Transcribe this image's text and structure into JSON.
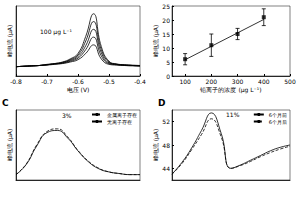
{
  "chart_data": [
    {
      "type": "line",
      "xlabel": "电压 (V)",
      "ylabel": "峰电流 (μA)",
      "annotation": "100 μg L⁻¹",
      "x": [
        -0.8,
        -0.775,
        -0.75,
        -0.725,
        -0.7,
        -0.675,
        -0.65,
        -0.625,
        -0.6,
        -0.575,
        -0.55,
        -0.525,
        -0.5,
        -0.475,
        -0.45,
        -0.425,
        -0.4
      ],
      "series": [
        {
          "color": "#000000",
          "values": [
            1.2,
            1.25,
            1.3,
            1.35,
            1.4,
            1.5,
            1.6,
            1.8,
            2.1,
            2.9,
            4.0,
            2.2,
            1.5,
            1.4,
            1.35,
            1.3,
            1.3
          ]
        },
        {
          "color": "#000000",
          "values": [
            1.2,
            1.25,
            1.3,
            1.35,
            1.45,
            1.55,
            1.65,
            1.9,
            2.3,
            3.4,
            5.0,
            2.6,
            1.6,
            1.45,
            1.4,
            1.35,
            1.3
          ]
        },
        {
          "color": "#000000",
          "values": [
            1.2,
            1.25,
            1.3,
            1.35,
            1.45,
            1.55,
            1.7,
            2.0,
            2.5,
            3.9,
            6.0,
            3.0,
            1.7,
            1.5,
            1.4,
            1.35,
            1.3
          ]
        },
        {
          "color": "#000000",
          "values": [
            1.2,
            1.25,
            1.3,
            1.35,
            1.45,
            1.6,
            1.75,
            2.1,
            2.7,
            4.5,
            7.0,
            3.4,
            1.8,
            1.5,
            1.4,
            1.35,
            1.3
          ]
        },
        {
          "color": "#000000",
          "values": [
            1.2,
            1.25,
            1.3,
            1.35,
            1.5,
            1.6,
            1.8,
            2.2,
            2.9,
            5.1,
            8.0,
            3.8,
            1.9,
            1.55,
            1.45,
            1.4,
            1.35
          ]
        }
      ],
      "xlim": [
        -0.8,
        -0.4
      ],
      "xticks": [
        -0.8,
        -0.7,
        -0.6,
        -0.5,
        -0.4
      ],
      "ylim": [
        0,
        9
      ],
      "tick_labels": "x"
    },
    {
      "type": "scatter",
      "xlabel": "铅离子的浓度 (μg L⁻¹)",
      "ylabel": "峰电流 (μA)",
      "x": [
        100,
        200,
        300,
        400
      ],
      "values": [
        6,
        11,
        15,
        21
      ],
      "errors": [
        2,
        4,
        2,
        3
      ],
      "fit": [
        5.8,
        10.6,
        15.4,
        20.2
      ],
      "color": "#000000",
      "marker": "square",
      "xlim": [
        50,
        500
      ],
      "xticks": [
        100,
        200,
        300,
        400,
        500
      ],
      "ylim": [
        0,
        25
      ],
      "yticks": [
        0,
        5,
        10,
        15,
        20,
        25
      ]
    },
    {
      "type": "line",
      "title": "C",
      "ylabel": "峰电流 (μA)",
      "annotation": "3%",
      "x": [
        0,
        1,
        2,
        3,
        4,
        5,
        6,
        7,
        8,
        9,
        10,
        11,
        12
      ],
      "series": [
        {
          "name": "金属离子存在",
          "color": "#000000",
          "line_style": "dashed",
          "values": [
            1,
            3,
            6.5,
            9,
            9.5,
            8,
            5.5,
            3.5,
            2.2,
            1.5,
            1.2,
            1,
            1
          ]
        },
        {
          "name": "无离子存在",
          "color": "#000000",
          "line_style": "solid",
          "values": [
            1,
            2.9,
            6.3,
            8.8,
            9.2,
            7.8,
            5.4,
            3.4,
            2.1,
            1.5,
            1.2,
            1,
            1
          ]
        }
      ],
      "xlim": [
        0,
        12
      ],
      "ylim": [
        0,
        13
      ],
      "tick_labels": false,
      "legend": "upper right"
    },
    {
      "type": "line",
      "title": "D",
      "ylabel": "峰电流 (μA)",
      "annotation": "11%",
      "x": [
        0,
        1,
        2,
        3,
        4,
        5,
        6,
        7,
        8,
        9,
        10,
        11,
        12
      ],
      "series": [
        {
          "name": "6个月前",
          "color": "#000000",
          "line_style": "solid",
          "values": [
            43,
            45,
            47.5,
            50.5,
            53.5,
            50,
            44,
            44.6,
            45.4,
            46.2,
            47,
            47.6,
            48
          ]
        },
        {
          "name": "6个月后",
          "color": "#000000",
          "line_style": "dashed",
          "values": [
            43,
            44.8,
            47.2,
            49.8,
            52.5,
            49.4,
            44,
            44.5,
            45.2,
            46,
            46.7,
            47.3,
            47.8
          ]
        }
      ],
      "xlim": [
        0,
        12
      ],
      "ylim": [
        42,
        54
      ],
      "yticks": [
        44,
        48,
        52
      ],
      "tick_labels": "y",
      "legend": "upper right"
    }
  ]
}
